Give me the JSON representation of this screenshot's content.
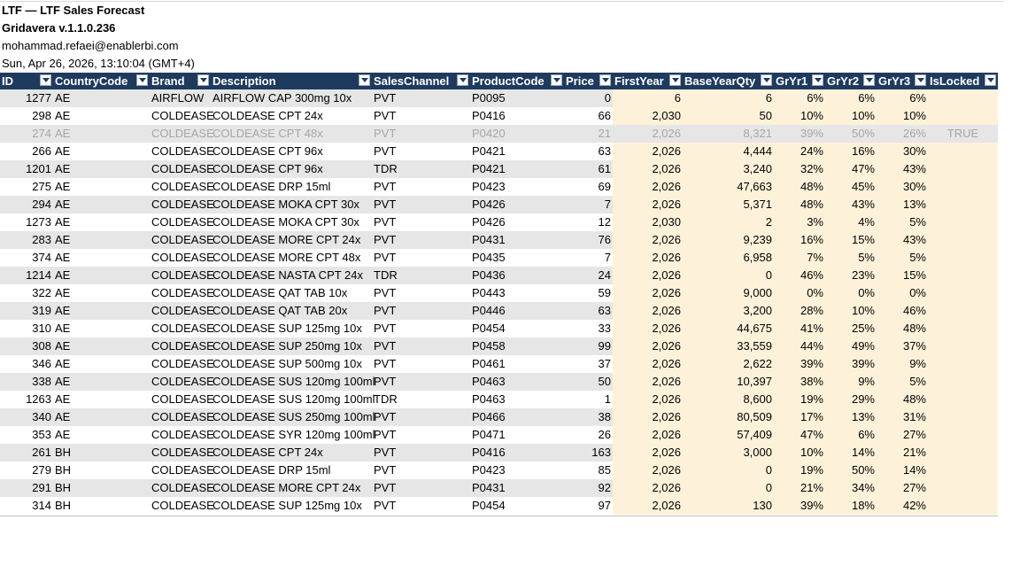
{
  "header": {
    "title": "LTF — LTF Sales Forecast",
    "version": "Gridavera v.1.1.0.236",
    "user": "mohammad.refaei@enablerbi.com",
    "timestamp": "Sun, Apr 26, 2026, 13:10:04 (GMT+4)"
  },
  "columns": [
    "ID",
    "CountryCode",
    "Brand",
    "Description",
    "SalesChannel",
    "ProductCode",
    "Price",
    "FirstYear",
    "BaseYearQty",
    "GrYr1",
    "GrYr2",
    "GrYr3",
    "IsLocked"
  ],
  "rows": [
    {
      "id": "1277",
      "country": "AE",
      "brand": "AIRFLOW",
      "desc": "AIRFLOW CAP 300mg 10x",
      "channel": "PVT",
      "code": "P0095",
      "price": "0",
      "first": "6",
      "base": "6",
      "g1": "6%",
      "g2": "6%",
      "g3": "6%",
      "locked": ""
    },
    {
      "id": "298",
      "country": "AE",
      "brand": "COLDEASE",
      "desc": "COLDEASE CPT 24x",
      "channel": "PVT",
      "code": "P0416",
      "price": "66",
      "first": "2,030",
      "base": "50",
      "g1": "10%",
      "g2": "10%",
      "g3": "10%",
      "locked": ""
    },
    {
      "id": "274",
      "country": "AE",
      "brand": "COLDEASE",
      "desc": "COLDEASE CPT 48x",
      "channel": "PVT",
      "code": "P0420",
      "price": "21",
      "first": "2,026",
      "base": "8,321",
      "g1": "39%",
      "g2": "50%",
      "g3": "26%",
      "locked": "TRUE"
    },
    {
      "id": "266",
      "country": "AE",
      "brand": "COLDEASE",
      "desc": "COLDEASE CPT 96x",
      "channel": "PVT",
      "code": "P0421",
      "price": "63",
      "first": "2,026",
      "base": "4,444",
      "g1": "24%",
      "g2": "16%",
      "g3": "30%",
      "locked": ""
    },
    {
      "id": "1201",
      "country": "AE",
      "brand": "COLDEASE",
      "desc": "COLDEASE CPT 96x",
      "channel": "TDR",
      "code": "P0421",
      "price": "61",
      "first": "2,026",
      "base": "3,240",
      "g1": "32%",
      "g2": "47%",
      "g3": "43%",
      "locked": ""
    },
    {
      "id": "275",
      "country": "AE",
      "brand": "COLDEASE",
      "desc": "COLDEASE DRP 15ml",
      "channel": "PVT",
      "code": "P0423",
      "price": "69",
      "first": "2,026",
      "base": "47,663",
      "g1": "48%",
      "g2": "45%",
      "g3": "30%",
      "locked": ""
    },
    {
      "id": "294",
      "country": "AE",
      "brand": "COLDEASE",
      "desc": "COLDEASE MOKA CPT 30x",
      "channel": "PVT",
      "code": "P0426",
      "price": "7",
      "first": "2,026",
      "base": "5,371",
      "g1": "48%",
      "g2": "43%",
      "g3": "13%",
      "locked": ""
    },
    {
      "id": "1273",
      "country": "AE",
      "brand": "COLDEASE",
      "desc": "COLDEASE MOKA CPT 30x",
      "channel": "PVT",
      "code": "P0426",
      "price": "12",
      "first": "2,030",
      "base": "2",
      "g1": "3%",
      "g2": "4%",
      "g3": "5%",
      "locked": ""
    },
    {
      "id": "283",
      "country": "AE",
      "brand": "COLDEASE",
      "desc": "COLDEASE MORE CPT 24x",
      "channel": "PVT",
      "code": "P0431",
      "price": "76",
      "first": "2,026",
      "base": "9,239",
      "g1": "16%",
      "g2": "15%",
      "g3": "43%",
      "locked": ""
    },
    {
      "id": "374",
      "country": "AE",
      "brand": "COLDEASE",
      "desc": "COLDEASE MORE CPT 48x",
      "channel": "PVT",
      "code": "P0435",
      "price": "7",
      "first": "2,026",
      "base": "6,958",
      "g1": "7%",
      "g2": "5%",
      "g3": "5%",
      "locked": ""
    },
    {
      "id": "1214",
      "country": "AE",
      "brand": "COLDEASE",
      "desc": "COLDEASE NASTA CPT 24x",
      "channel": "TDR",
      "code": "P0436",
      "price": "24",
      "first": "2,026",
      "base": "0",
      "g1": "46%",
      "g2": "23%",
      "g3": "15%",
      "locked": ""
    },
    {
      "id": "322",
      "country": "AE",
      "brand": "COLDEASE",
      "desc": "COLDEASE QAT TAB 10x",
      "channel": "PVT",
      "code": "P0443",
      "price": "59",
      "first": "2,026",
      "base": "9,000",
      "g1": "0%",
      "g2": "0%",
      "g3": "0%",
      "locked": ""
    },
    {
      "id": "319",
      "country": "AE",
      "brand": "COLDEASE",
      "desc": "COLDEASE QAT TAB 20x",
      "channel": "PVT",
      "code": "P0446",
      "price": "63",
      "first": "2,026",
      "base": "3,200",
      "g1": "28%",
      "g2": "10%",
      "g3": "46%",
      "locked": ""
    },
    {
      "id": "310",
      "country": "AE",
      "brand": "COLDEASE",
      "desc": "COLDEASE SUP 125mg 10x",
      "channel": "PVT",
      "code": "P0454",
      "price": "33",
      "first": "2,026",
      "base": "44,675",
      "g1": "41%",
      "g2": "25%",
      "g3": "48%",
      "locked": ""
    },
    {
      "id": "308",
      "country": "AE",
      "brand": "COLDEASE",
      "desc": "COLDEASE SUP 250mg 10x",
      "channel": "PVT",
      "code": "P0458",
      "price": "99",
      "first": "2,026",
      "base": "33,559",
      "g1": "44%",
      "g2": "49%",
      "g3": "37%",
      "locked": ""
    },
    {
      "id": "346",
      "country": "AE",
      "brand": "COLDEASE",
      "desc": "COLDEASE SUP 500mg 10x",
      "channel": "PVT",
      "code": "P0461",
      "price": "37",
      "first": "2,026",
      "base": "2,622",
      "g1": "39%",
      "g2": "39%",
      "g3": "9%",
      "locked": ""
    },
    {
      "id": "338",
      "country": "AE",
      "brand": "COLDEASE",
      "desc": "COLDEASE SUS 120mg 100ml",
      "channel": "PVT",
      "code": "P0463",
      "price": "50",
      "first": "2,026",
      "base": "10,397",
      "g1": "38%",
      "g2": "9%",
      "g3": "5%",
      "locked": ""
    },
    {
      "id": "1263",
      "country": "AE",
      "brand": "COLDEASE",
      "desc": "COLDEASE SUS 120mg 100ml",
      "channel": "TDR",
      "code": "P0463",
      "price": "1",
      "first": "2,026",
      "base": "8,600",
      "g1": "19%",
      "g2": "29%",
      "g3": "48%",
      "locked": ""
    },
    {
      "id": "340",
      "country": "AE",
      "brand": "COLDEASE",
      "desc": "COLDEASE SUS 250mg 100ml",
      "channel": "PVT",
      "code": "P0466",
      "price": "38",
      "first": "2,026",
      "base": "80,509",
      "g1": "17%",
      "g2": "13%",
      "g3": "31%",
      "locked": ""
    },
    {
      "id": "353",
      "country": "AE",
      "brand": "COLDEASE",
      "desc": "COLDEASE SYR 120mg 100ml",
      "channel": "PVT",
      "code": "P0471",
      "price": "26",
      "first": "2,026",
      "base": "57,409",
      "g1": "47%",
      "g2": "6%",
      "g3": "27%",
      "locked": ""
    },
    {
      "id": "261",
      "country": "BH",
      "brand": "COLDEASE",
      "desc": "COLDEASE CPT 24x",
      "channel": "PVT",
      "code": "P0416",
      "price": "163",
      "first": "2,026",
      "base": "3,000",
      "g1": "10%",
      "g2": "14%",
      "g3": "21%",
      "locked": ""
    },
    {
      "id": "279",
      "country": "BH",
      "brand": "COLDEASE",
      "desc": "COLDEASE DRP 15ml",
      "channel": "PVT",
      "code": "P0423",
      "price": "85",
      "first": "2,026",
      "base": "0",
      "g1": "19%",
      "g2": "50%",
      "g3": "14%",
      "locked": ""
    },
    {
      "id": "291",
      "country": "BH",
      "brand": "COLDEASE",
      "desc": "COLDEASE MORE CPT 24x",
      "channel": "PVT",
      "code": "P0431",
      "price": "92",
      "first": "2,026",
      "base": "0",
      "g1": "21%",
      "g2": "34%",
      "g3": "27%",
      "locked": ""
    },
    {
      "id": "314",
      "country": "BH",
      "brand": "COLDEASE",
      "desc": "COLDEASE SUP 125mg 10x",
      "channel": "PVT",
      "code": "P0454",
      "price": "97",
      "first": "2,026",
      "base": "130",
      "g1": "39%",
      "g2": "18%",
      "g3": "42%",
      "locked": ""
    }
  ],
  "colors": {
    "header_bg": "#1f3a5f",
    "editable_bg": "#fdf2d9",
    "stripe": "#e6e6e6",
    "locked_text": "#a6a6a6"
  }
}
